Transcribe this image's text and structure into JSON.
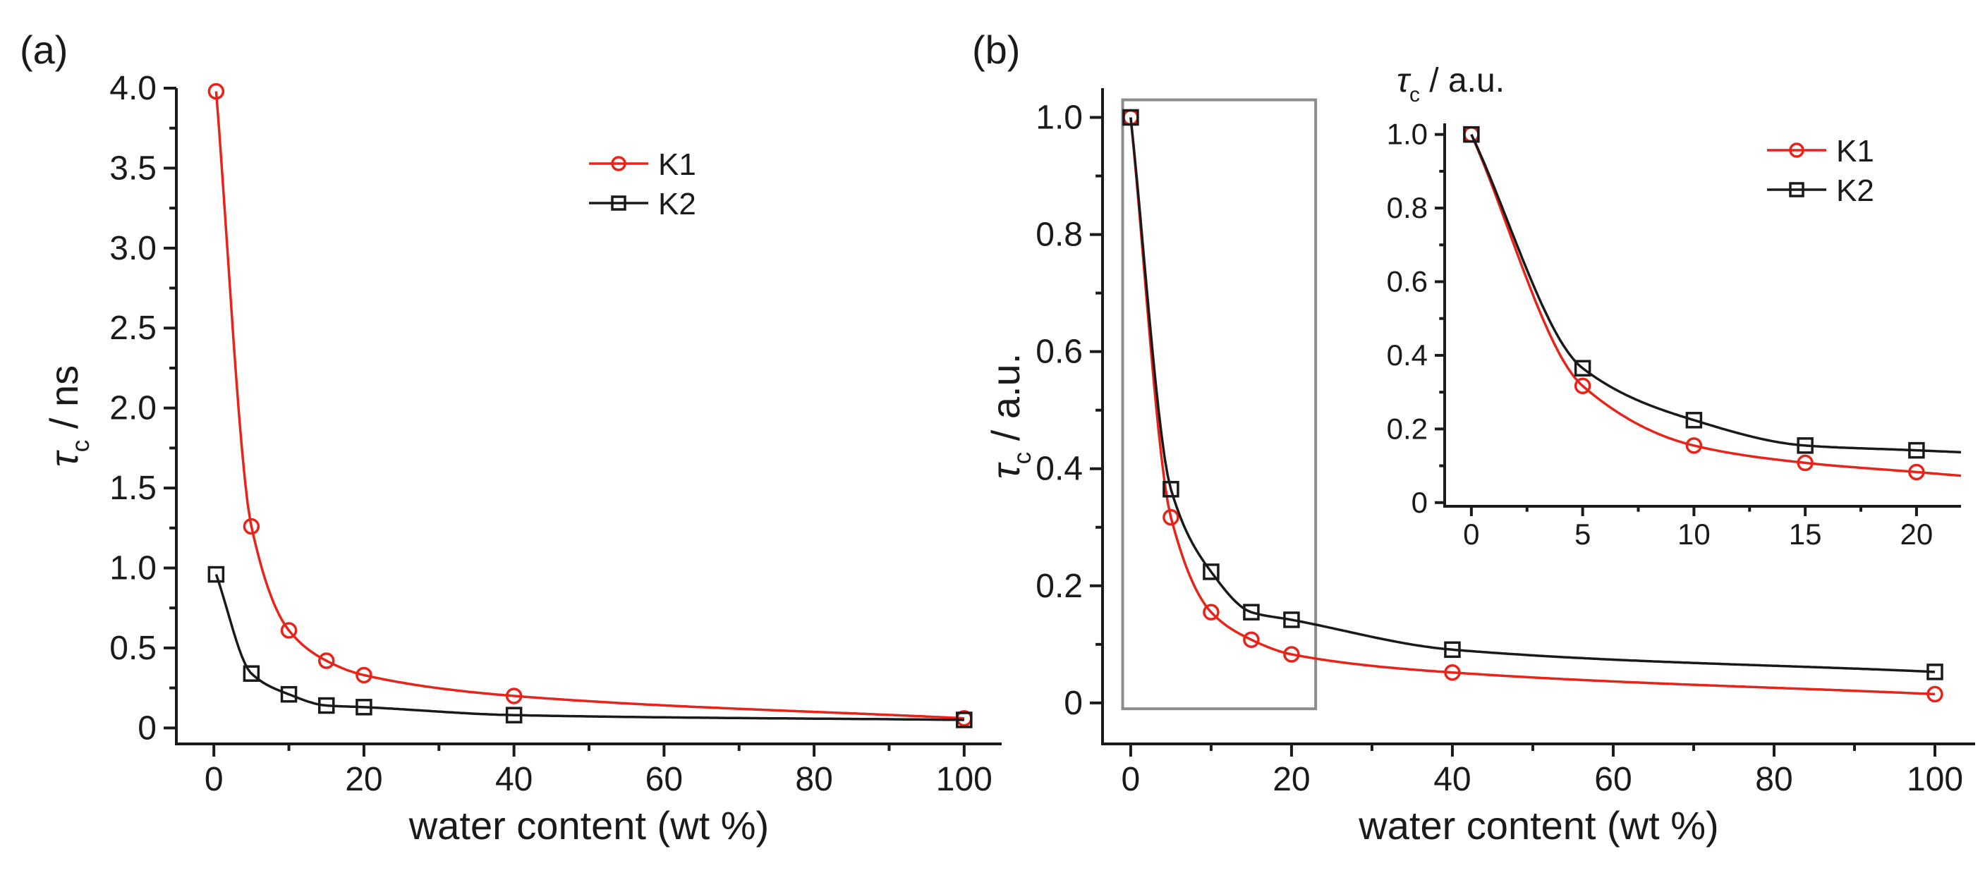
{
  "chart_data": [
    {
      "panel": "(a)",
      "type": "line",
      "xlabel": "water content (wt %)",
      "ylabel_symbol": "τ",
      "ylabel_sub": "c",
      "ylabel_unit": " / ns",
      "xlim": [
        -5,
        105
      ],
      "ylim": [
        -0.1,
        4.0
      ],
      "x_ticks": [
        0,
        20,
        40,
        60,
        80,
        100
      ],
      "y_ticks": [
        0,
        0.5,
        1.0,
        1.5,
        2.0,
        2.5,
        3.0,
        3.5,
        4.0
      ],
      "y_tick_labels": [
        "0",
        "0.5",
        "1.0",
        "1.5",
        "2.0",
        "2.5",
        "3.0",
        "3.5",
        "4.0"
      ],
      "legend": "top-right",
      "series": [
        {
          "name": "K1",
          "color": "#e8231a",
          "marker": "circle",
          "x": [
            0.3,
            5,
            10,
            15,
            20,
            40,
            100
          ],
          "y": [
            3.98,
            1.26,
            0.61,
            0.42,
            0.33,
            0.2,
            0.06
          ]
        },
        {
          "name": "K2",
          "color": "#1a1a1a",
          "marker": "square",
          "x": [
            0.3,
            5,
            10,
            15,
            20,
            40,
            100
          ],
          "y": [
            0.96,
            0.34,
            0.21,
            0.14,
            0.13,
            0.08,
            0.05
          ]
        }
      ]
    },
    {
      "panel": "(b)",
      "type": "line",
      "xlabel": "water content (wt %)",
      "ylabel_symbol": "τ",
      "ylabel_sub": "c",
      "ylabel_unit": " / a.u.",
      "xlim": [
        -3.5,
        105
      ],
      "ylim": [
        -0.07,
        1.05
      ],
      "x_ticks": [
        0,
        20,
        40,
        60,
        80,
        100
      ],
      "y_ticks": [
        0,
        0.2,
        0.4,
        0.6,
        0.8,
        1.0
      ],
      "y_tick_labels": [
        "0",
        "0.2",
        "0.4",
        "0.6",
        "0.8",
        "1.0"
      ],
      "legend": "top-right",
      "zoom_box": {
        "x": [
          -1,
          23
        ],
        "y": [
          -0.01,
          1.03
        ]
      },
      "series": [
        {
          "name": "K1",
          "color": "#e8231a",
          "marker": "circle",
          "x": [
            0,
            5,
            10,
            15,
            20,
            40,
            100
          ],
          "y": [
            1.0,
            0.317,
            0.155,
            0.108,
            0.083,
            0.052,
            0.015
          ]
        },
        {
          "name": "K2",
          "color": "#1a1a1a",
          "marker": "square",
          "x": [
            0,
            5,
            10,
            15,
            20,
            40,
            100
          ],
          "y": [
            1.0,
            0.365,
            0.224,
            0.155,
            0.142,
            0.091,
            0.053
          ]
        }
      ]
    },
    {
      "panel": "(b) inset",
      "type": "line",
      "ylabel_symbol": "τ",
      "ylabel_sub": "c",
      "ylabel_unit": " / a.u.",
      "xlim": [
        -1.2,
        22
      ],
      "ylim": [
        -0.01,
        1.03
      ],
      "x_ticks": [
        0,
        5,
        10,
        15,
        20
      ],
      "y_ticks": [
        0,
        0.2,
        0.4,
        0.6,
        0.8,
        1.0
      ],
      "y_tick_labels": [
        "0",
        "0.2",
        "0.4",
        "0.6",
        "0.8",
        "1.0"
      ],
      "series": [
        {
          "name": "K1",
          "color": "#e8231a",
          "marker": "circle",
          "x": [
            0,
            5,
            10,
            15,
            20
          ],
          "y": [
            1.0,
            0.317,
            0.155,
            0.108,
            0.083
          ]
        },
        {
          "name": "K2",
          "color": "#1a1a1a",
          "marker": "square",
          "x": [
            0,
            5,
            10,
            15,
            20
          ],
          "y": [
            1.0,
            0.365,
            0.224,
            0.155,
            0.142
          ]
        }
      ]
    }
  ]
}
